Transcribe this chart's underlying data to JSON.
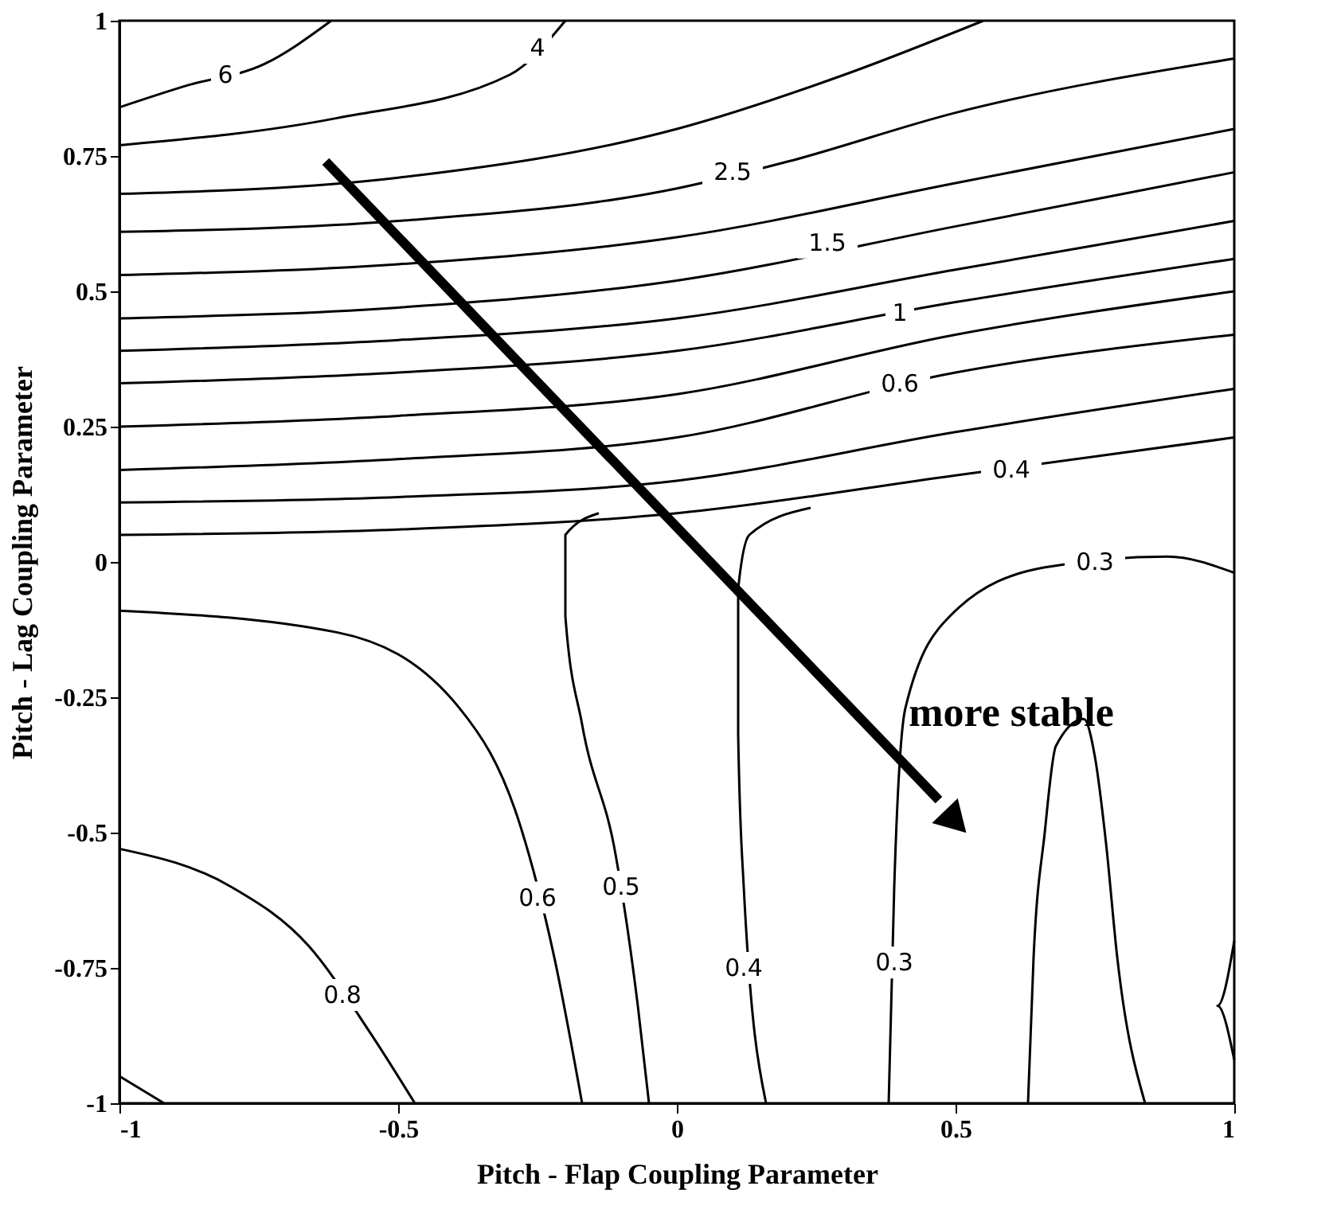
{
  "chart_data": {
    "type": "line",
    "xlabel": "Pitch - Flap Coupling Parameter",
    "ylabel": "Pitch - Lag Coupling Parameter",
    "xlim": [
      -1,
      1
    ],
    "xticks": [
      -1,
      -0.5,
      0,
      0.5,
      1
    ],
    "ylim": [
      -1,
      1
    ],
    "yticks": [
      -1,
      -0.75,
      -0.5,
      -0.25,
      0,
      0.25,
      0.5,
      0.75,
      1
    ],
    "grid": false,
    "legend": false,
    "marker": "none",
    "line_style": "solid",
    "series": [
      {
        "color": "#000000",
        "x": [
          -1,
          -0.88,
          -0.74,
          -0.62
        ],
        "values": [
          0.84,
          0.88,
          0.92,
          1.0
        ]
      },
      {
        "color": "#000000",
        "x": [
          -1,
          -0.61,
          -0.3,
          -0.2
        ],
        "values": [
          0.77,
          0.82,
          0.9,
          1.0
        ]
      },
      {
        "color": "#000000",
        "x": [
          -1,
          -0.5,
          0,
          0.3,
          0.55
        ],
        "values": [
          0.68,
          0.71,
          0.8,
          0.9,
          1.0
        ]
      },
      {
        "color": "#000000",
        "x": [
          -1,
          -0.5,
          0,
          0.2,
          0.5,
          1
        ],
        "values": [
          0.61,
          0.63,
          0.69,
          0.74,
          0.83,
          0.93
        ]
      },
      {
        "color": "#000000",
        "x": [
          -1,
          -0.5,
          0,
          0.5,
          1
        ],
        "values": [
          0.53,
          0.55,
          0.6,
          0.7,
          0.8
        ]
      },
      {
        "color": "#000000",
        "x": [
          -1,
          -0.5,
          0,
          0.5,
          1
        ],
        "values": [
          0.45,
          0.47,
          0.52,
          0.62,
          0.72
        ]
      },
      {
        "color": "#000000",
        "x": [
          -1,
          -0.5,
          0,
          0.5,
          1
        ],
        "values": [
          0.39,
          0.41,
          0.45,
          0.54,
          0.63
        ]
      },
      {
        "color": "#000000",
        "x": [
          -1,
          -0.5,
          0,
          0.5,
          1
        ],
        "values": [
          0.33,
          0.35,
          0.39,
          0.48,
          0.56
        ]
      },
      {
        "color": "#000000",
        "x": [
          -1,
          -0.5,
          0,
          0.5,
          1
        ],
        "values": [
          0.25,
          0.27,
          0.31,
          0.42,
          0.5
        ]
      },
      {
        "color": "#000000",
        "x": [
          -1,
          -0.5,
          0,
          0.5,
          1
        ],
        "values": [
          0.17,
          0.19,
          0.23,
          0.35,
          0.42
        ]
      },
      {
        "color": "#000000",
        "x": [
          -1,
          -0.5,
          0,
          0.5,
          1
        ],
        "values": [
          0.11,
          0.12,
          0.15,
          0.24,
          0.32
        ]
      },
      {
        "color": "#000000",
        "x": [
          -1,
          -0.5,
          0,
          0.5,
          1
        ],
        "values": [
          0.05,
          0.06,
          0.09,
          0.16,
          0.23
        ]
      },
      {
        "color": "#000000",
        "x": [
          -0.14,
          -0.2,
          -0.2,
          -0.17,
          -0.11,
          -0.07,
          -0.05
        ],
        "values": [
          0.09,
          0.05,
          -0.1,
          -0.3,
          -0.54,
          -0.82,
          -1
        ]
      },
      {
        "color": "#000000",
        "x": [
          0.24,
          0.13,
          0.11,
          0.11,
          0.12,
          0.16
        ],
        "values": [
          0.1,
          0.05,
          -0.05,
          -0.32,
          -0.6,
          -1
        ]
      },
      {
        "color": "#000000",
        "x": [
          -1,
          -0.61,
          -0.39,
          -0.28,
          -0.22,
          -0.17
        ],
        "values": [
          -0.09,
          -0.13,
          -0.27,
          -0.49,
          -0.73,
          -1
        ]
      },
      {
        "color": "#000000",
        "x": [
          -1,
          -0.8,
          -0.66,
          -0.55,
          -0.47
        ],
        "values": [
          -0.53,
          -0.6,
          -0.71,
          -0.87,
          -1
        ]
      },
      {
        "color": "#000000",
        "x": [
          -1,
          -0.92
        ],
        "values": [
          -0.95,
          -1
        ]
      },
      {
        "color": "#000000",
        "x": [
          0.38,
          0.39,
          0.41,
          0.49,
          0.66,
          0.88,
          1.0
        ],
        "values": [
          -1,
          -0.6,
          -0.27,
          -0.1,
          -0.01,
          0.01,
          -0.02
        ]
      },
      {
        "color": "#000000",
        "x": [
          0.63,
          0.64,
          0.66,
          0.68,
          0.73,
          0.75,
          0.77,
          0.79,
          0.84
        ],
        "values": [
          -1,
          -0.73,
          -0.5,
          -0.34,
          -0.29,
          -0.36,
          -0.52,
          -0.73,
          -1
        ]
      },
      {
        "color": "#000000",
        "x": [
          1,
          0.97,
          1
        ],
        "values": [
          -0.7,
          -0.82,
          -0.92
        ]
      }
    ],
    "annotations": [
      {
        "text": "6",
        "x": -0.81,
        "y": 0.9
      },
      {
        "text": "4",
        "x": -0.25,
        "y": 0.95
      },
      {
        "text": "2.5",
        "x": 0.1,
        "y": 0.72
      },
      {
        "text": "1.5",
        "x": 0.27,
        "y": 0.59
      },
      {
        "text": "1",
        "x": 0.4,
        "y": 0.46
      },
      {
        "text": "0.6",
        "x": 0.4,
        "y": 0.33
      },
      {
        "text": "0.4",
        "x": 0.6,
        "y": 0.17
      },
      {
        "text": "0.3",
        "x": 0.75,
        "y": 0.0
      },
      {
        "text": "0.8",
        "x": -0.6,
        "y": -0.8
      },
      {
        "text": "0.6",
        "x": -0.25,
        "y": -0.62
      },
      {
        "text": "0.5",
        "x": -0.1,
        "y": -0.6
      },
      {
        "text": "0.4",
        "x": 0.12,
        "y": -0.75
      },
      {
        "text": "0.3",
        "x": 0.39,
        "y": -0.74
      },
      "more stable"
    ]
  }
}
